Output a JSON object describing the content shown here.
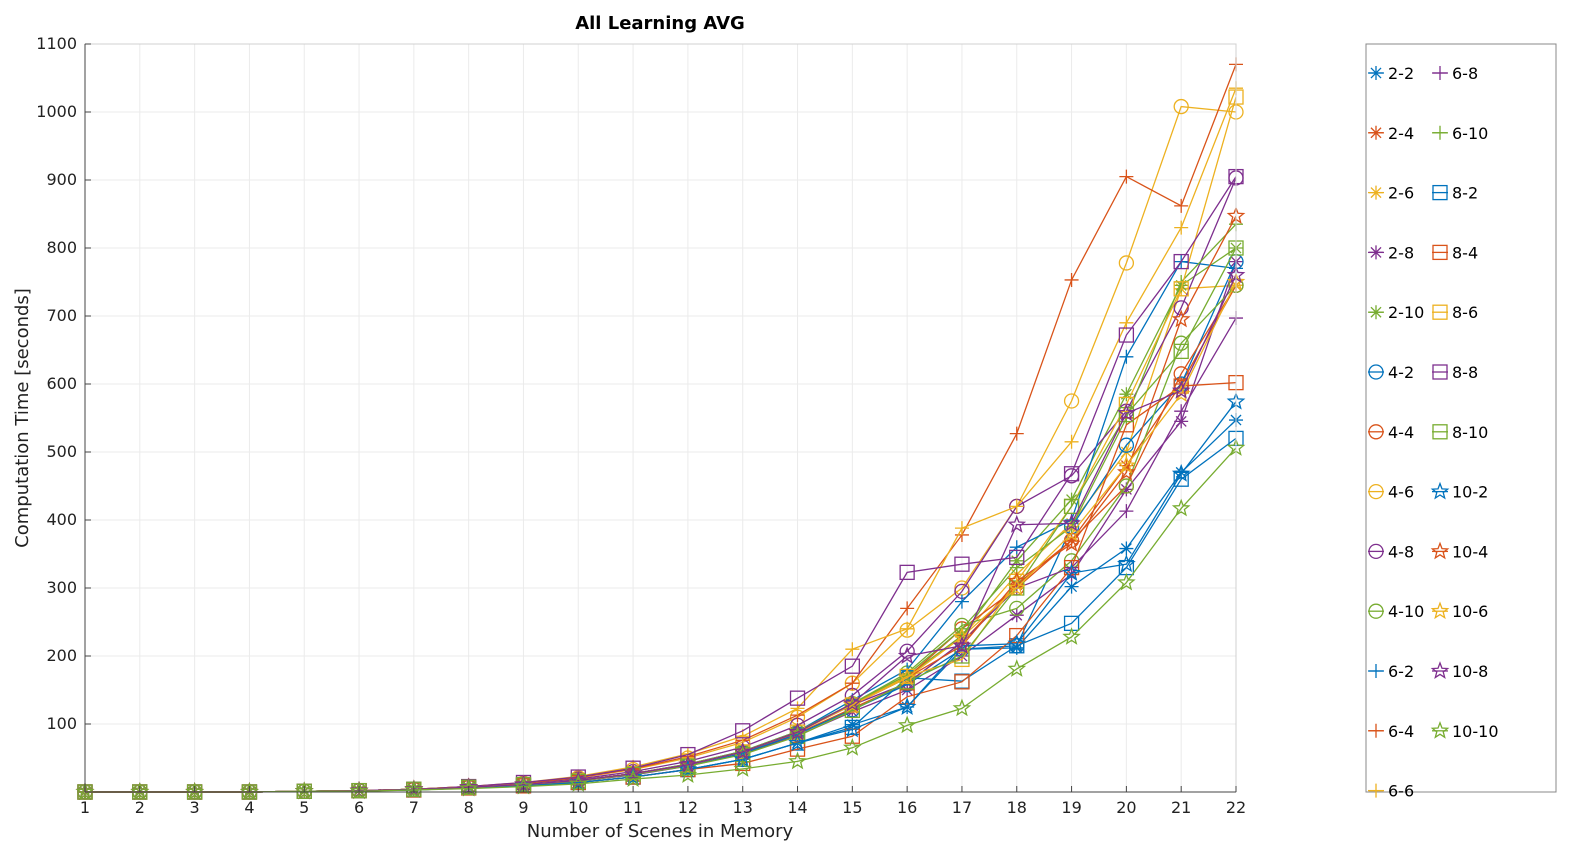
{
  "chart_data": {
    "type": "line",
    "title": "All Learning AVG",
    "xlabel": "Number of Scenes in Memory",
    "ylabel": "Computation Time [seconds]",
    "xlim": [
      1,
      22
    ],
    "ylim": [
      0,
      1100
    ],
    "x": [
      1,
      2,
      3,
      4,
      5,
      6,
      7,
      8,
      9,
      10,
      11,
      12,
      13,
      14,
      15,
      16,
      17,
      18,
      19,
      20,
      21,
      22
    ],
    "x_ticks": [
      "1",
      "2",
      "3",
      "4",
      "5",
      "6",
      "7",
      "8",
      "9",
      "10",
      "11",
      "12",
      "13",
      "14",
      "15",
      "16",
      "17",
      "18",
      "19",
      "20",
      "21",
      "22"
    ],
    "y_ticks": [
      "100",
      "200",
      "300",
      "400",
      "500",
      "600",
      "700",
      "800",
      "900",
      "1000",
      "1100"
    ],
    "grid": true,
    "legend_position": "outside-right",
    "series": [
      {
        "name": "2-2",
        "color": "#0072BD",
        "marker": "asterisk",
        "values": [
          0,
          0,
          0,
          0,
          1,
          2,
          3,
          6,
          9,
          14,
          22,
          33,
          48,
          72,
          99,
          125,
          210,
          212,
          302,
          358,
          470,
          547
        ]
      },
      {
        "name": "2-4",
        "color": "#D95319",
        "marker": "asterisk",
        "values": [
          0,
          0,
          0,
          0,
          1,
          2,
          4,
          7,
          11,
          17,
          27,
          40,
          58,
          86,
          123,
          160,
          220,
          305,
          370,
          480,
          600,
          745
        ]
      },
      {
        "name": "2-6",
        "color": "#EDB120",
        "marker": "asterisk",
        "values": [
          0,
          0,
          0,
          0,
          1,
          2,
          4,
          7,
          11,
          17,
          27,
          40,
          59,
          88,
          128,
          168,
          228,
          320,
          395,
          500,
          740,
          745
        ]
      },
      {
        "name": "2-8",
        "color": "#7E2F8E",
        "marker": "asterisk",
        "values": [
          0,
          0,
          0,
          0,
          1,
          2,
          3,
          7,
          10,
          16,
          25,
          38,
          56,
          83,
          118,
          150,
          200,
          260,
          320,
          445,
          545,
          780
        ]
      },
      {
        "name": "2-10",
        "color": "#77AC30",
        "marker": "asterisk",
        "values": [
          0,
          0,
          0,
          0,
          1,
          2,
          4,
          7,
          11,
          17,
          27,
          41,
          60,
          89,
          130,
          170,
          230,
          340,
          430,
          585,
          745,
          800
        ]
      },
      {
        "name": "4-2",
        "color": "#0072BD",
        "marker": "circle",
        "values": [
          0,
          0,
          0,
          0,
          1,
          2,
          4,
          7,
          11,
          17,
          26,
          39,
          57,
          85,
          121,
          158,
          210,
          215,
          390,
          510,
          600,
          780
        ]
      },
      {
        "name": "4-4",
        "color": "#D95319",
        "marker": "circle",
        "values": [
          0,
          0,
          0,
          0,
          1,
          2,
          4,
          7,
          11,
          17,
          27,
          40,
          59,
          88,
          128,
          168,
          240,
          300,
          370,
          450,
          615,
          745
        ]
      },
      {
        "name": "4-6",
        "color": "#EDB120",
        "marker": "circle",
        "values": [
          0,
          0,
          0,
          0,
          1,
          2,
          4,
          8,
          13,
          21,
          33,
          50,
          73,
          110,
          160,
          238,
          300,
          420,
          575,
          778,
          1008,
          1000
        ]
      },
      {
        "name": "4-8",
        "color": "#7E2F8E",
        "marker": "circle",
        "values": [
          0,
          0,
          0,
          0,
          1,
          2,
          4,
          8,
          12,
          19,
          30,
          45,
          66,
          98,
          142,
          207,
          295,
          420,
          465,
          560,
          712,
          903
        ]
      },
      {
        "name": "4-10",
        "color": "#77AC30",
        "marker": "circle",
        "values": [
          0,
          0,
          0,
          0,
          1,
          2,
          4,
          7,
          11,
          17,
          27,
          40,
          59,
          88,
          130,
          175,
          245,
          270,
          340,
          450,
          660,
          745
        ]
      },
      {
        "name": "6-2",
        "color": "#0072BD",
        "marker": "plus",
        "values": [
          0,
          0,
          0,
          0,
          1,
          2,
          4,
          7,
          11,
          17,
          27,
          41,
          60,
          89,
          135,
          180,
          280,
          360,
          400,
          640,
          780,
          770
        ]
      },
      {
        "name": "6-4",
        "color": "#D95319",
        "marker": "plus",
        "values": [
          0,
          0,
          0,
          0,
          1,
          2,
          4,
          8,
          13,
          21,
          34,
          52,
          76,
          113,
          160,
          270,
          378,
          527,
          753,
          905,
          862,
          1070
        ]
      },
      {
        "name": "6-6",
        "color": "#EDB120",
        "marker": "plus",
        "values": [
          0,
          0,
          0,
          0,
          1,
          2,
          4,
          8,
          14,
          23,
          37,
          56,
          82,
          123,
          210,
          240,
          388,
          420,
          515,
          690,
          830,
          1035
        ]
      },
      {
        "name": "6-8",
        "color": "#7E2F8E",
        "marker": "plus",
        "values": [
          0,
          0,
          0,
          0,
          1,
          2,
          4,
          7,
          11,
          17,
          27,
          40,
          59,
          88,
          128,
          160,
          220,
          300,
          330,
          413,
          560,
          697
        ]
      },
      {
        "name": "6-10",
        "color": "#77AC30",
        "marker": "plus",
        "values": [
          0,
          0,
          0,
          0,
          1,
          2,
          4,
          7,
          11,
          17,
          27,
          41,
          60,
          89,
          130,
          172,
          240,
          330,
          390,
          550,
          750,
          835
        ]
      },
      {
        "name": "8-2",
        "color": "#0072BD",
        "marker": "square",
        "values": [
          0,
          0,
          0,
          0,
          1,
          2,
          3,
          6,
          9,
          14,
          22,
          33,
          48,
          72,
          95,
          168,
          163,
          215,
          248,
          330,
          460,
          520
        ]
      },
      {
        "name": "8-4",
        "color": "#D95319",
        "marker": "square",
        "values": [
          0,
          0,
          0,
          0,
          1,
          2,
          3,
          6,
          9,
          14,
          22,
          33,
          42,
          63,
          82,
          140,
          162,
          230,
          330,
          540,
          597,
          602
        ]
      },
      {
        "name": "8-6",
        "color": "#EDB120",
        "marker": "square",
        "values": [
          0,
          0,
          0,
          0,
          1,
          2,
          4,
          7,
          11,
          17,
          27,
          40,
          59,
          88,
          128,
          170,
          195,
          310,
          420,
          570,
          740,
          1022
        ]
      },
      {
        "name": "8-8",
        "color": "#7E2F8E",
        "marker": "square",
        "values": [
          0,
          0,
          0,
          0,
          1,
          2,
          4,
          8,
          14,
          22,
          35,
          55,
          90,
          138,
          185,
          323,
          335,
          345,
          468,
          672,
          780,
          905
        ]
      },
      {
        "name": "8-10",
        "color": "#77AC30",
        "marker": "square",
        "values": [
          0,
          0,
          0,
          0,
          1,
          2,
          4,
          7,
          11,
          16,
          26,
          38,
          55,
          82,
          120,
          162,
          200,
          300,
          420,
          555,
          648,
          800
        ]
      },
      {
        "name": "10-2",
        "color": "#0072BD",
        "marker": "pentagram",
        "values": [
          0,
          0,
          0,
          0,
          1,
          2,
          3,
          6,
          9,
          14,
          22,
          33,
          48,
          72,
          92,
          125,
          215,
          218,
          322,
          335,
          468,
          574
        ]
      },
      {
        "name": "10-4",
        "color": "#D95319",
        "marker": "pentagram",
        "values": [
          0,
          0,
          0,
          0,
          1,
          2,
          4,
          7,
          11,
          17,
          27,
          40,
          59,
          88,
          128,
          168,
          215,
          310,
          365,
          470,
          695,
          847
        ]
      },
      {
        "name": "10-6",
        "color": "#EDB120",
        "marker": "pentagram",
        "values": [
          0,
          0,
          0,
          0,
          1,
          2,
          4,
          7,
          11,
          17,
          27,
          40,
          59,
          88,
          128,
          168,
          228,
          300,
          380,
          480,
          585,
          750
        ]
      },
      {
        "name": "10-8",
        "color": "#7E2F8E",
        "marker": "pentagram",
        "values": [
          0,
          0,
          0,
          0,
          1,
          2,
          4,
          7,
          11,
          17,
          27,
          40,
          59,
          88,
          130,
          200,
          215,
          393,
          395,
          557,
          590,
          760
        ]
      },
      {
        "name": "10-10",
        "color": "#77AC30",
        "marker": "pentagram",
        "values": [
          0,
          0,
          0,
          0,
          1,
          1,
          3,
          5,
          8,
          12,
          19,
          25,
          34,
          45,
          65,
          98,
          123,
          181,
          228,
          308,
          417,
          506
        ]
      }
    ]
  }
}
